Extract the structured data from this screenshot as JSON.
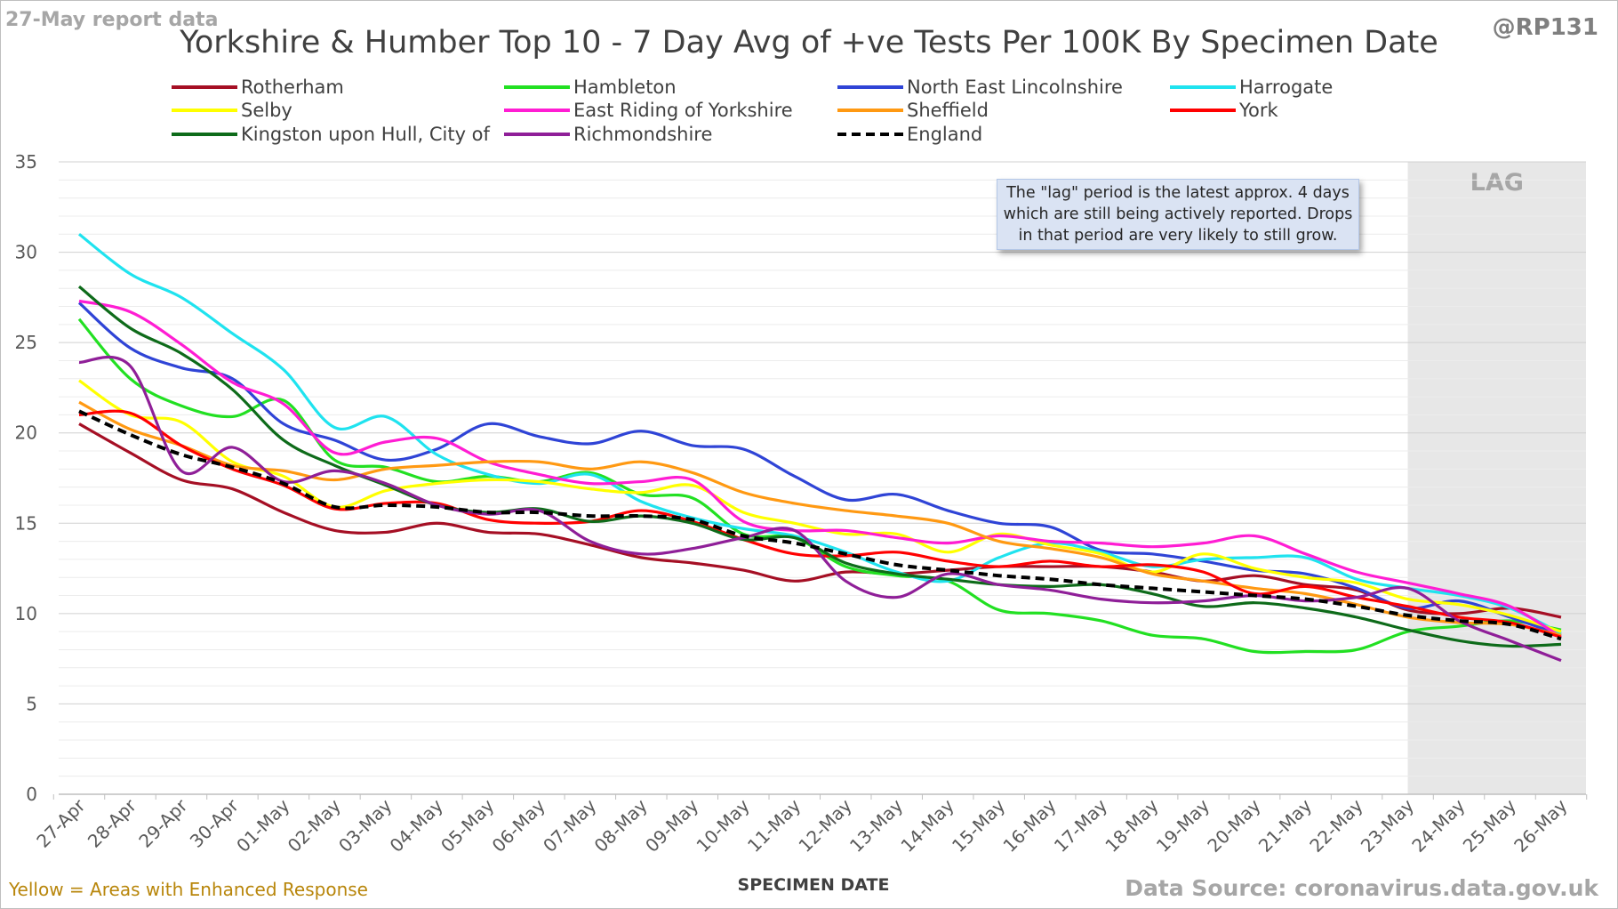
{
  "header": {
    "report_date": "27-May report data",
    "title": "Yorkshire & Humber Top 10 - 7 Day Avg of +ve Tests Per 100K By Specimen Date",
    "handle": "@RP131"
  },
  "footer": {
    "note": "Yellow = Areas with Enhanced Response",
    "source": "Data Source: coronavirus.data.gov.uk"
  },
  "callout": "The \"lag\" period is the latest approx. 4 days which are still being actively reported. Drops in that period are very likely to still grow.",
  "lag_label": "LAG",
  "colors": {
    "grid": "#d9d9d9",
    "lag_band": "#e7e7e7",
    "axis": "#bfbfbf"
  },
  "chart_data": {
    "type": "line",
    "title": "Yorkshire & Humber Top 10 - 7 Day Avg of +ve Tests Per 100K By Specimen Date",
    "xlabel": "SPECIMEN DATE",
    "ylabel": "",
    "ylim": [
      0,
      35
    ],
    "yticks": [
      0,
      5,
      10,
      15,
      20,
      25,
      30,
      35
    ],
    "grid": true,
    "legend_position": "top",
    "lag_period": [
      "23-May",
      "26-May"
    ],
    "categories": [
      "27-Apr",
      "28-Apr",
      "29-Apr",
      "30-Apr",
      "01-May",
      "02-May",
      "03-May",
      "04-May",
      "05-May",
      "06-May",
      "07-May",
      "08-May",
      "09-May",
      "10-May",
      "11-May",
      "12-May",
      "13-May",
      "14-May",
      "15-May",
      "16-May",
      "17-May",
      "18-May",
      "19-May",
      "20-May",
      "21-May",
      "22-May",
      "23-May",
      "24-May",
      "25-May",
      "26-May"
    ],
    "series": [
      {
        "name": "Rotherham",
        "color": "#a50f24",
        "dash": false,
        "values": [
          20.5,
          18.9,
          17.4,
          16.9,
          15.6,
          14.6,
          14.5,
          15.0,
          14.5,
          14.4,
          13.8,
          13.1,
          12.8,
          12.4,
          11.8,
          12.3,
          12.2,
          12.4,
          12.6,
          12.6,
          12.6,
          12.3,
          11.8,
          12.1,
          11.6,
          11.3,
          10.2,
          10.0,
          10.3,
          9.8
        ]
      },
      {
        "name": "Hambleton",
        "color": "#22e022",
        "dash": false,
        "values": [
          26.3,
          23.0,
          21.5,
          20.9,
          21.8,
          18.5,
          18.1,
          17.3,
          17.6,
          17.3,
          17.8,
          16.6,
          16.4,
          14.4,
          14.2,
          12.6,
          12.1,
          11.8,
          10.2,
          10.0,
          9.6,
          8.8,
          8.6,
          7.9,
          7.9,
          8.0,
          9.0,
          9.3,
          9.6,
          9.1
        ]
      },
      {
        "name": "North East Lincolnshire",
        "color": "#2f44d6",
        "dash": false,
        "values": [
          27.2,
          24.7,
          23.6,
          23.0,
          20.5,
          19.6,
          18.5,
          19.1,
          20.5,
          19.8,
          19.4,
          20.1,
          19.3,
          19.1,
          17.6,
          16.3,
          16.6,
          15.7,
          15.0,
          14.8,
          13.5,
          13.3,
          12.9,
          12.4,
          12.2,
          11.4,
          10.3,
          10.7,
          9.8,
          8.8
        ]
      },
      {
        "name": "Harrogate",
        "color": "#1fe3ef",
        "dash": false,
        "values": [
          31.0,
          28.8,
          27.5,
          25.5,
          23.5,
          20.3,
          20.9,
          18.8,
          17.7,
          17.2,
          17.7,
          16.2,
          15.3,
          14.7,
          14.3,
          13.4,
          12.3,
          11.8,
          13.1,
          13.9,
          13.4,
          12.6,
          13.0,
          13.1,
          13.1,
          11.9,
          11.4,
          11.0,
          10.3,
          8.9
        ]
      },
      {
        "name": "Selby",
        "color": "#ffff00",
        "dash": false,
        "values": [
          22.9,
          21.0,
          20.6,
          18.4,
          17.6,
          15.9,
          16.8,
          17.2,
          17.4,
          17.3,
          16.9,
          16.7,
          17.1,
          15.6,
          15.0,
          14.4,
          14.4,
          13.4,
          14.4,
          13.8,
          13.3,
          12.3,
          13.3,
          12.5,
          12.0,
          11.7,
          10.8,
          10.5,
          9.9,
          9.0
        ]
      },
      {
        "name": "East Riding of Yorkshire",
        "color": "#ff1dd3",
        "dash": false,
        "values": [
          27.3,
          26.7,
          24.9,
          22.8,
          21.6,
          18.9,
          19.5,
          19.7,
          18.4,
          17.7,
          17.2,
          17.3,
          17.4,
          15.1,
          14.6,
          14.6,
          14.2,
          13.9,
          14.3,
          14.0,
          13.9,
          13.7,
          13.9,
          14.3,
          13.3,
          12.3,
          11.7,
          11.1,
          10.4,
          8.7
        ]
      },
      {
        "name": "Sheffield",
        "color": "#ff9912",
        "dash": false,
        "values": [
          21.7,
          20.2,
          19.3,
          18.2,
          17.9,
          17.4,
          18.0,
          18.2,
          18.4,
          18.4,
          18.0,
          18.4,
          17.8,
          16.7,
          16.1,
          15.7,
          15.4,
          15.0,
          14.0,
          13.6,
          13.1,
          12.2,
          11.8,
          11.4,
          11.1,
          10.5,
          9.8,
          9.5,
          9.4,
          8.8
        ]
      },
      {
        "name": "York",
        "color": "#ff0000",
        "dash": false,
        "values": [
          21.0,
          21.1,
          19.3,
          18.0,
          17.1,
          15.8,
          16.1,
          16.1,
          15.2,
          15.0,
          15.1,
          15.7,
          15.1,
          14.1,
          13.3,
          13.2,
          13.4,
          12.9,
          12.6,
          12.9,
          12.6,
          12.7,
          12.3,
          11.1,
          11.5,
          10.9,
          10.4,
          9.8,
          9.5,
          8.7
        ]
      },
      {
        "name": "Kingston upon Hull, City of",
        "color": "#0e6b1a",
        "dash": false,
        "values": [
          28.1,
          25.8,
          24.4,
          22.4,
          19.6,
          18.2,
          17.1,
          16.0,
          15.6,
          15.8,
          15.1,
          15.4,
          15.0,
          14.1,
          14.2,
          12.8,
          12.2,
          11.9,
          11.6,
          11.5,
          11.6,
          11.1,
          10.4,
          10.6,
          10.3,
          9.8,
          9.1,
          8.5,
          8.2,
          8.3
        ]
      },
      {
        "name": "Richmondshire",
        "color": "#8f1f98",
        "dash": false,
        "values": [
          23.9,
          23.7,
          17.9,
          19.2,
          17.3,
          17.9,
          17.2,
          16.0,
          15.5,
          15.7,
          14.0,
          13.3,
          13.6,
          14.2,
          14.6,
          11.8,
          10.9,
          12.2,
          11.6,
          11.3,
          10.8,
          10.6,
          10.7,
          11.0,
          10.7,
          10.9,
          11.4,
          9.6,
          8.5,
          7.4
        ]
      },
      {
        "name": "England",
        "color": "#000000",
        "dash": true,
        "values": [
          21.2,
          19.9,
          18.8,
          18.1,
          17.2,
          15.9,
          16.0,
          15.9,
          15.6,
          15.6,
          15.4,
          15.4,
          15.2,
          14.3,
          13.9,
          13.3,
          12.7,
          12.4,
          12.1,
          11.9,
          11.6,
          11.4,
          11.2,
          11.0,
          10.8,
          10.4,
          9.9,
          9.6,
          9.4,
          8.6
        ]
      }
    ]
  }
}
